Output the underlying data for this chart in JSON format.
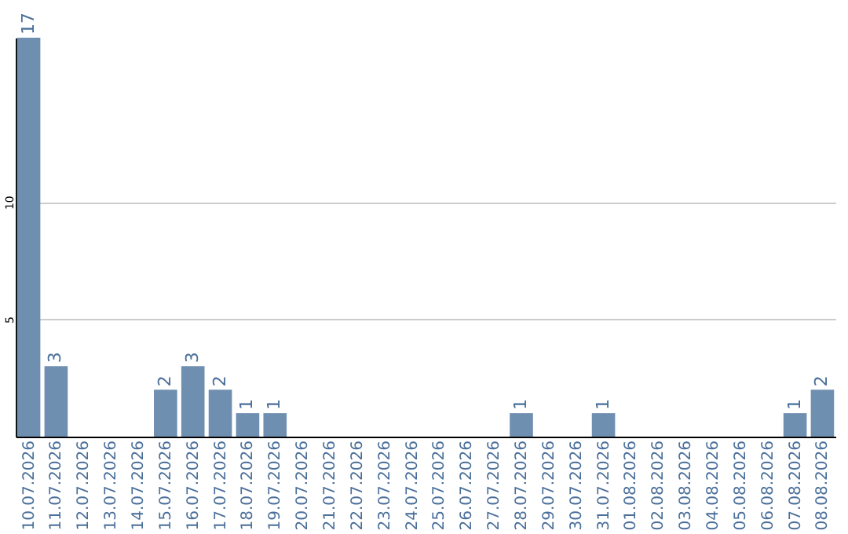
{
  "chart_data": {
    "type": "bar",
    "categories": [
      "10.07.2026",
      "11.07.2026",
      "12.07.2026",
      "13.07.2026",
      "14.07.2026",
      "15.07.2026",
      "16.07.2026",
      "17.07.2026",
      "18.07.2026",
      "19.07.2026",
      "20.07.2026",
      "21.07.2026",
      "22.07.2026",
      "23.07.2026",
      "24.07.2026",
      "25.07.2026",
      "26.07.2026",
      "27.07.2026",
      "28.07.2026",
      "29.07.2026",
      "30.07.2026",
      "31.07.2026",
      "01.08.2026",
      "02.08.2026",
      "03.08.2026",
      "04.08.2026",
      "05.08.2026",
      "06.08.2026",
      "07.08.2026",
      "08.08.2026"
    ],
    "values": [
      17,
      3,
      0,
      0,
      0,
      2,
      3,
      2,
      1,
      1,
      0,
      0,
      0,
      0,
      0,
      0,
      0,
      0,
      1,
      0,
      0,
      1,
      0,
      0,
      0,
      0,
      0,
      0,
      1,
      2
    ],
    "value_labels": [
      "17",
      "3",
      null,
      null,
      null,
      "2",
      "3",
      "2",
      "1",
      "1",
      null,
      null,
      null,
      null,
      null,
      null,
      null,
      null,
      "1",
      null,
      null,
      "1",
      null,
      null,
      null,
      null,
      null,
      null,
      "1",
      "2"
    ],
    "color": "#6f8fb0",
    "ylim": [
      0,
      17
    ],
    "yticks": [
      5,
      10
    ],
    "grid": "y"
  }
}
